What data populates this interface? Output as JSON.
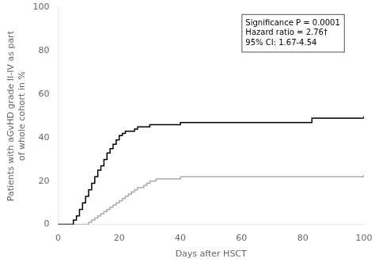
{
  "chart_data": {
    "type": "step",
    "xlabel": "Days after HSCT",
    "ylabel": "Patients with aGvHD grade II-IV as part\nof whole cohort in %",
    "xlim": [
      0,
      100
    ],
    "ylim": [
      0,
      100
    ],
    "xticks": [
      0,
      20,
      40,
      60,
      80,
      100
    ],
    "yticks": [
      0,
      20,
      40,
      60,
      80,
      100
    ],
    "grid": false,
    "annotation": "Significance P = 0.0001\nHazard ratio = 2.76†\n95% CI: 1.67-4.54",
    "series": [
      {
        "color": "#000000",
        "x": [
          0,
          0,
          5,
          6,
          7,
          8,
          9,
          10,
          11,
          12,
          13,
          14,
          15,
          16,
          17,
          18,
          19,
          20,
          21,
          22,
          23,
          24,
          25,
          26,
          27,
          28,
          29,
          30,
          31,
          33,
          35,
          37,
          40,
          43,
          46,
          50,
          55,
          60,
          65,
          70,
          75,
          80,
          83,
          87,
          90,
          95,
          100
        ],
        "values": [
          0,
          0,
          2,
          4,
          7,
          10,
          13,
          16,
          19,
          22,
          25,
          27,
          30,
          33,
          35,
          37,
          39,
          41,
          42,
          43,
          43,
          43,
          44,
          45,
          45,
          45,
          45,
          46,
          46,
          46,
          46,
          46,
          47,
          47,
          47,
          47,
          47,
          47,
          47,
          47,
          47,
          47,
          49,
          49,
          49,
          49,
          50
        ]
      },
      {
        "color": "#aaaaaa",
        "x": [
          0,
          0,
          10,
          11,
          12,
          13,
          14,
          15,
          16,
          17,
          18,
          19,
          20,
          21,
          22,
          23,
          24,
          25,
          26,
          27,
          28,
          29,
          30,
          32,
          34,
          36,
          38,
          40,
          42,
          45,
          48,
          52,
          55,
          60,
          65,
          70,
          75,
          80,
          85,
          90,
          95,
          100
        ],
        "values": [
          0,
          0,
          1,
          2,
          3,
          4,
          5,
          6,
          7,
          8,
          9,
          10,
          11,
          12,
          13,
          14,
          15,
          16,
          17,
          17,
          18,
          19,
          20,
          21,
          21,
          21,
          21,
          22,
          22,
          22,
          22,
          22,
          22,
          22,
          22,
          22,
          22,
          22,
          22,
          22,
          22,
          23
        ]
      }
    ]
  }
}
